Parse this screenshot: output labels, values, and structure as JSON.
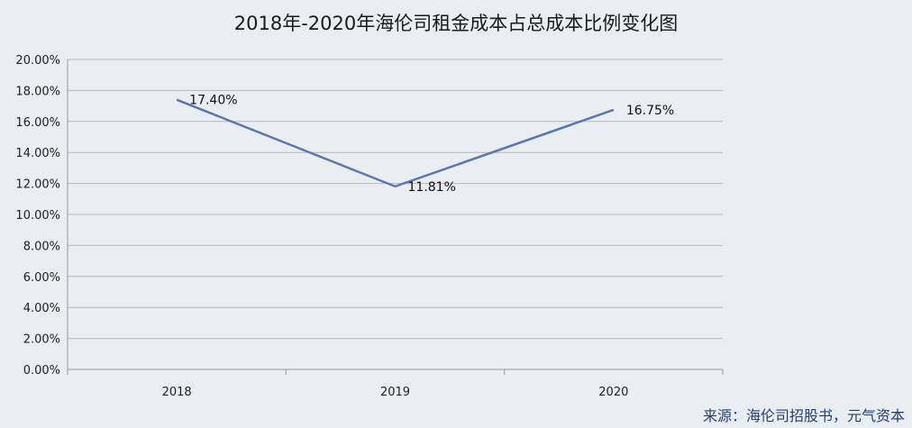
{
  "chart_data": {
    "type": "line",
    "title": "2018年-2020年海伦司租金成本占总成本比例变化图",
    "categories": [
      "2018",
      "2019",
      "2020"
    ],
    "values": [
      17.4,
      11.81,
      16.75
    ],
    "data_labels": [
      "17.40%",
      "11.81%",
      "16.75%"
    ],
    "y_ticks": [
      "0.00%",
      "2.00%",
      "4.00%",
      "6.00%",
      "8.00%",
      "10.00%",
      "12.00%",
      "14.00%",
      "16.00%",
      "18.00%",
      "20.00%"
    ],
    "ylim": [
      0,
      20
    ],
    "xlabel": "",
    "ylabel": "",
    "grid": true,
    "legend": "none",
    "line_color": "#5b76b5",
    "grid_color": "#b7b7b7"
  },
  "footer": {
    "source": "来源：海伦司招股书，元气资本"
  }
}
